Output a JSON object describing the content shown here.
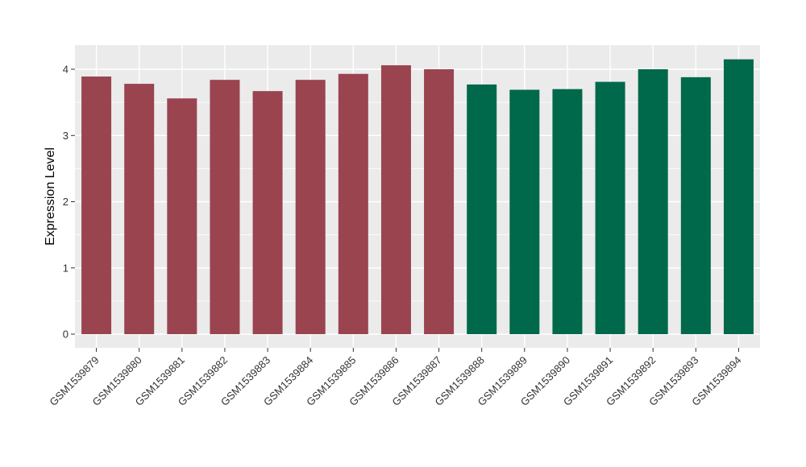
{
  "chart_data": {
    "type": "bar",
    "title": "",
    "xlabel": "",
    "ylabel": "Expression Level",
    "categories": [
      "GSM1539879",
      "GSM1539880",
      "GSM1539881",
      "GSM1539882",
      "GSM1539883",
      "GSM1539884",
      "GSM1539885",
      "GSM1539886",
      "GSM1539887",
      "GSM1539888",
      "GSM1539889",
      "GSM1539890",
      "GSM1539891",
      "GSM1539892",
      "GSM1539893",
      "GSM1539894"
    ],
    "values": [
      3.89,
      3.78,
      3.56,
      3.84,
      3.67,
      3.84,
      3.93,
      4.06,
      4.0,
      3.77,
      3.69,
      3.7,
      3.81,
      4.0,
      3.88,
      4.15
    ],
    "bar_colors": [
      "#9A4450",
      "#9A4450",
      "#9A4450",
      "#9A4450",
      "#9A4450",
      "#9A4450",
      "#9A4450",
      "#9A4450",
      "#9A4450",
      "#00684B",
      "#00684B",
      "#00684B",
      "#00684B",
      "#00684B",
      "#00684B",
      "#00684B"
    ],
    "group_colors": {
      "group1": "#9A4450",
      "group2": "#00684B"
    },
    "yticks": [
      0,
      1,
      2,
      3,
      4
    ],
    "ytick_labels": [
      "0",
      "1",
      "2",
      "3",
      "4"
    ],
    "yticks_minor": [
      0.5,
      1.5,
      2.5,
      3.5
    ],
    "ylim": [
      0,
      4.38
    ],
    "grid": "major-and-minor-white",
    "legend": "none",
    "panel_bg": "#EBEBEB",
    "grid_color": "#FFFFFF",
    "tick_color": "#333333",
    "axis_text_color": "#333333",
    "axis_title_color": "#000000"
  }
}
